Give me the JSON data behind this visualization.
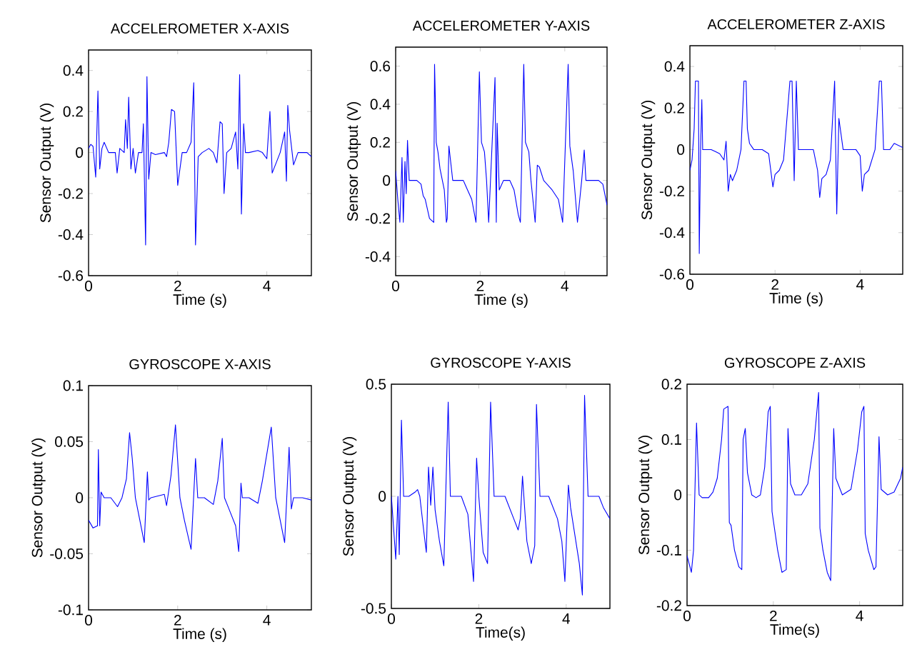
{
  "chart_data": [
    {
      "type": "line",
      "title": "ACCELEROMETER   X-AXIS",
      "xlabel": "Time (s)",
      "ylabel": "Sensor Output (V)",
      "xlim": [
        0,
        5
      ],
      "ylim": [
        -0.6,
        0.5
      ],
      "xticks": [
        0,
        2,
        4
      ],
      "yticks": [
        -0.6,
        -0.4,
        -0.2,
        0,
        0.2,
        0.4
      ],
      "grid": false,
      "series": [
        {
          "color": "#0000ff",
          "x": [
            0,
            0.05,
            0.1,
            0.16,
            0.21,
            0.25,
            0.3,
            0.35,
            0.45,
            0.6,
            0.64,
            0.7,
            0.8,
            0.83,
            0.87,
            0.9,
            0.95,
            1.0,
            1.05,
            1.12,
            1.2,
            1.23,
            1.28,
            1.31,
            1.35,
            1.4,
            1.5,
            1.7,
            1.75,
            1.8,
            1.86,
            1.93,
            2.0,
            2.1,
            2.2,
            2.3,
            2.36,
            2.4,
            2.46,
            2.55,
            2.7,
            2.8,
            2.88,
            2.95,
            3.0,
            3.04,
            3.1,
            3.2,
            3.3,
            3.35,
            3.39,
            3.43,
            3.48,
            3.52,
            3.6,
            3.8,
            3.9,
            4.0,
            4.07,
            4.12,
            4.3,
            4.4,
            4.44,
            4.47,
            4.51,
            4.6,
            4.7,
            4.9,
            5.0
          ],
          "values": [
            0.02,
            0.04,
            0.03,
            -0.12,
            0.3,
            -0.08,
            0.02,
            0.05,
            0.0,
            0.0,
            -0.1,
            0.02,
            0.0,
            0.16,
            0.02,
            0.27,
            -0.08,
            0.02,
            -0.1,
            0.0,
            0.0,
            0.14,
            -0.45,
            0.37,
            -0.13,
            0.0,
            -0.01,
            0.0,
            -0.02,
            0.05,
            0.21,
            0.2,
            -0.16,
            0.0,
            0.0,
            0.05,
            0.34,
            -0.45,
            -0.02,
            0.0,
            0.02,
            0.0,
            -0.05,
            0.15,
            0.14,
            -0.2,
            0.0,
            0.02,
            0.1,
            -0.08,
            0.38,
            -0.3,
            0.14,
            0.0,
            0.0,
            0.01,
            0.0,
            -0.03,
            0.2,
            -0.1,
            0.0,
            0.1,
            -0.14,
            0.23,
            0.11,
            -0.06,
            0.0,
            0.0,
            -0.02
          ]
        }
      ]
    },
    {
      "type": "line",
      "title": "ACCELEROMETER   Y-AXIS",
      "xlabel": "Time (s)",
      "ylabel": "Sensor Output (V)",
      "xlim": [
        0,
        5
      ],
      "ylim": [
        -0.5,
        0.7
      ],
      "xticks": [
        0,
        2,
        4
      ],
      "yticks": [
        -0.4,
        -0.2,
        0,
        0.2,
        0.4,
        0.6
      ],
      "grid": false,
      "series": [
        {
          "color": "#0000ff",
          "x": [
            0,
            0.05,
            0.1,
            0.15,
            0.18,
            0.22,
            0.25,
            0.28,
            0.32,
            0.4,
            0.5,
            0.6,
            0.65,
            0.7,
            0.75,
            0.8,
            0.9,
            0.92,
            0.96,
            1.0,
            1.05,
            1.15,
            1.2,
            1.22,
            1.26,
            1.35,
            1.45,
            1.6,
            1.7,
            1.8,
            1.9,
            1.98,
            2.03,
            2.1,
            2.15,
            2.2,
            2.35,
            2.38,
            2.4,
            2.45,
            2.55,
            2.7,
            2.8,
            2.9,
            2.95,
            3.03,
            3.07,
            3.15,
            3.2,
            3.3,
            3.35,
            3.4,
            3.5,
            3.7,
            3.85,
            3.95,
            4.08,
            4.12,
            4.2,
            4.3,
            4.4,
            4.46,
            4.5,
            4.6,
            4.7,
            4.8,
            4.9,
            5.0
          ],
          "values": [
            0.05,
            -0.1,
            -0.22,
            0.12,
            -0.22,
            0.1,
            -0.07,
            0.21,
            0.0,
            0.0,
            0.0,
            -0.02,
            -0.08,
            -0.1,
            -0.15,
            -0.2,
            -0.22,
            0.61,
            0.2,
            0.15,
            0.06,
            -0.05,
            -0.22,
            -0.2,
            0.18,
            0.0,
            0.0,
            0.0,
            -0.05,
            -0.1,
            -0.22,
            0.57,
            0.2,
            0.15,
            0.0,
            -0.22,
            0.54,
            -0.22,
            0.3,
            -0.05,
            0.0,
            0.0,
            -0.05,
            -0.18,
            -0.22,
            0.61,
            0.2,
            0.15,
            0.0,
            -0.22,
            0.08,
            0.07,
            0.0,
            -0.05,
            -0.1,
            -0.22,
            0.61,
            0.18,
            0.05,
            -0.22,
            0.0,
            0.16,
            0.0,
            0.0,
            0.0,
            0.0,
            -0.02,
            -0.13
          ]
        }
      ]
    },
    {
      "type": "line",
      "title": "ACCELEROMETER   Z-AXIS",
      "xlabel": "Time (s)",
      "ylabel": "Sensor Output (V)",
      "xlim": [
        0,
        5
      ],
      "ylim": [
        -0.6,
        0.5
      ],
      "xticks": [
        0,
        2,
        4
      ],
      "yticks": [
        -0.6,
        -0.4,
        -0.2,
        0,
        0.2,
        0.4
      ],
      "grid": false,
      "series": [
        {
          "color": "#0000ff",
          "x": [
            0,
            0.05,
            0.1,
            0.13,
            0.2,
            0.22,
            0.25,
            0.28,
            0.3,
            0.4,
            0.5,
            0.6,
            0.7,
            0.8,
            0.85,
            0.9,
            0.95,
            1.0,
            1.1,
            1.2,
            1.27,
            1.32,
            1.35,
            1.4,
            1.5,
            1.7,
            1.85,
            1.95,
            2.0,
            2.1,
            2.2,
            2.3,
            2.35,
            2.4,
            2.45,
            2.5,
            2.55,
            2.7,
            2.9,
            3.0,
            3.05,
            3.1,
            3.2,
            3.3,
            3.4,
            3.45,
            3.5,
            3.6,
            3.7,
            3.9,
            4.0,
            4.05,
            4.1,
            4.2,
            4.35,
            4.45,
            4.5,
            4.55,
            4.7,
            4.8,
            5.0
          ],
          "values": [
            -0.1,
            -0.05,
            0.1,
            0.33,
            0.33,
            -0.5,
            0.0,
            0.24,
            0.0,
            0.0,
            0.0,
            -0.01,
            -0.02,
            -0.05,
            0.04,
            -0.2,
            -0.12,
            -0.15,
            -0.1,
            0.0,
            0.33,
            0.33,
            0.1,
            0.03,
            0.0,
            0.0,
            -0.02,
            -0.18,
            -0.12,
            -0.1,
            -0.05,
            0.2,
            0.33,
            0.33,
            -0.15,
            0.33,
            0.0,
            0.0,
            0.0,
            -0.1,
            -0.23,
            -0.14,
            -0.12,
            -0.05,
            0.33,
            -0.31,
            0.15,
            0.0,
            0.0,
            0.0,
            -0.03,
            -0.2,
            -0.12,
            -0.1,
            0.0,
            0.33,
            0.33,
            0.0,
            0.0,
            0.03,
            0.01
          ]
        }
      ]
    },
    {
      "type": "line",
      "title": "GYROSCOPE   X-AXIS",
      "xlabel": "Time (s)",
      "ylabel": "Sensor Output (V)",
      "xlim": [
        0,
        5
      ],
      "ylim": [
        -0.1,
        0.1
      ],
      "xticks": [
        0,
        2,
        4
      ],
      "yticks": [
        -0.1,
        -0.05,
        0,
        0.05,
        0.1
      ],
      "grid": false,
      "series": [
        {
          "color": "#0000ff",
          "x": [
            0,
            0.1,
            0.2,
            0.22,
            0.25,
            0.28,
            0.35,
            0.5,
            0.65,
            0.75,
            0.85,
            0.92,
            0.98,
            1.05,
            1.15,
            1.25,
            1.32,
            1.35,
            1.4,
            1.7,
            1.75,
            1.85,
            1.95,
            2.05,
            2.15,
            2.3,
            2.4,
            2.45,
            2.6,
            2.8,
            2.9,
            3.0,
            3.05,
            3.15,
            3.3,
            3.37,
            3.42,
            3.45,
            3.6,
            3.8,
            3.9,
            4.1,
            4.2,
            4.3,
            4.4,
            4.5,
            4.55,
            4.6,
            4.8,
            5.0
          ],
          "values": [
            -0.02,
            -0.027,
            -0.025,
            0.043,
            -0.025,
            0.005,
            0.0,
            0.0,
            -0.008,
            0.0,
            0.017,
            0.058,
            0.035,
            0.0,
            -0.02,
            -0.04,
            0.023,
            -0.002,
            0.0,
            0.003,
            -0.007,
            0.02,
            0.065,
            0.0,
            -0.02,
            -0.046,
            0.035,
            0.0,
            0.0,
            -0.006,
            0.015,
            0.053,
            0.0,
            -0.01,
            -0.025,
            -0.048,
            0.013,
            0.0,
            0.0,
            -0.005,
            0.015,
            0.063,
            0.0,
            -0.02,
            -0.04,
            0.045,
            -0.01,
            0.0,
            0.0,
            -0.002
          ]
        }
      ]
    },
    {
      "type": "line",
      "title": "GYROSCOPE   Y-AXIS",
      "xlabel": "Time(s)",
      "ylabel": "Sensor Output (V)",
      "xlim": [
        0,
        5
      ],
      "ylim": [
        -0.5,
        0.5
      ],
      "xticks": [
        0,
        2,
        4
      ],
      "yticks": [
        -0.5,
        0,
        0.5
      ],
      "grid": false,
      "series": [
        {
          "color": "#0000ff",
          "x": [
            0,
            0.1,
            0.15,
            0.18,
            0.23,
            0.28,
            0.4,
            0.55,
            0.6,
            0.65,
            0.75,
            0.8,
            0.85,
            0.9,
            0.95,
            1.0,
            1.1,
            1.2,
            1.3,
            1.35,
            1.5,
            1.6,
            1.75,
            1.88,
            1.95,
            2.0,
            2.1,
            2.2,
            2.27,
            2.35,
            2.6,
            2.8,
            2.9,
            2.95,
            3.0,
            3.1,
            3.2,
            3.28,
            3.32,
            3.4,
            3.6,
            3.8,
            3.9,
            3.97,
            4.05,
            4.1,
            4.3,
            4.37,
            4.42,
            4.5,
            4.6,
            4.75,
            4.85,
            5.0
          ],
          "values": [
            0.0,
            -0.28,
            0.0,
            -0.26,
            0.34,
            0.0,
            0.0,
            0.02,
            0.03,
            0.0,
            -0.17,
            -0.25,
            0.13,
            -0.04,
            0.13,
            -0.06,
            -0.2,
            -0.31,
            0.42,
            0.0,
            0.0,
            0.0,
            -0.08,
            -0.38,
            0.17,
            0.0,
            -0.25,
            -0.3,
            0.42,
            0.0,
            0.0,
            -0.1,
            -0.15,
            -0.1,
            0.09,
            -0.2,
            -0.3,
            -0.22,
            0.41,
            0.0,
            0.0,
            -0.1,
            -0.2,
            -0.38,
            0.05,
            -0.05,
            -0.3,
            -0.44,
            0.45,
            0.0,
            0.0,
            0.0,
            -0.05,
            -0.1
          ]
        }
      ]
    },
    {
      "type": "line",
      "title": "GYROSCOPE   Z-AXIS",
      "xlabel": "Time(s)",
      "ylabel": "Sensor Output (V)",
      "xlim": [
        0,
        5
      ],
      "ylim": [
        -0.2,
        0.2
      ],
      "xticks": [
        0,
        2,
        4
      ],
      "yticks": [
        -0.2,
        -0.1,
        0,
        0.1,
        0.2
      ],
      "grid": false,
      "series": [
        {
          "color": "#0000ff",
          "x": [
            0,
            0.1,
            0.15,
            0.22,
            0.28,
            0.35,
            0.5,
            0.6,
            0.7,
            0.8,
            0.85,
            0.95,
            0.98,
            1.02,
            1.1,
            1.2,
            1.27,
            1.3,
            1.35,
            1.4,
            1.5,
            1.6,
            1.7,
            1.8,
            1.88,
            1.93,
            1.97,
            2.1,
            2.2,
            2.3,
            2.34,
            2.4,
            2.5,
            2.65,
            2.8,
            2.95,
            3.05,
            3.08,
            3.15,
            3.25,
            3.33,
            3.4,
            3.45,
            3.6,
            3.8,
            3.95,
            4.05,
            4.1,
            4.13,
            4.2,
            4.33,
            4.38,
            4.45,
            4.5,
            4.65,
            4.8,
            4.95,
            5.0
          ],
          "values": [
            -0.11,
            -0.14,
            -0.1,
            0.13,
            0.0,
            -0.005,
            -0.005,
            0.005,
            0.03,
            0.1,
            0.155,
            0.16,
            -0.05,
            -0.055,
            -0.1,
            -0.13,
            -0.135,
            0.1,
            0.12,
            0.04,
            0.0,
            -0.005,
            0.0,
            0.05,
            0.15,
            0.16,
            -0.03,
            -0.1,
            -0.14,
            -0.135,
            0.12,
            0.02,
            0.0,
            0.0,
            0.02,
            0.1,
            0.185,
            -0.06,
            -0.1,
            -0.14,
            -0.155,
            0.12,
            0.03,
            0.0,
            0.01,
            0.08,
            0.15,
            0.16,
            -0.07,
            -0.1,
            -0.135,
            -0.13,
            0.105,
            0.01,
            0.0,
            0.005,
            0.03,
            0.05
          ]
        }
      ]
    }
  ]
}
